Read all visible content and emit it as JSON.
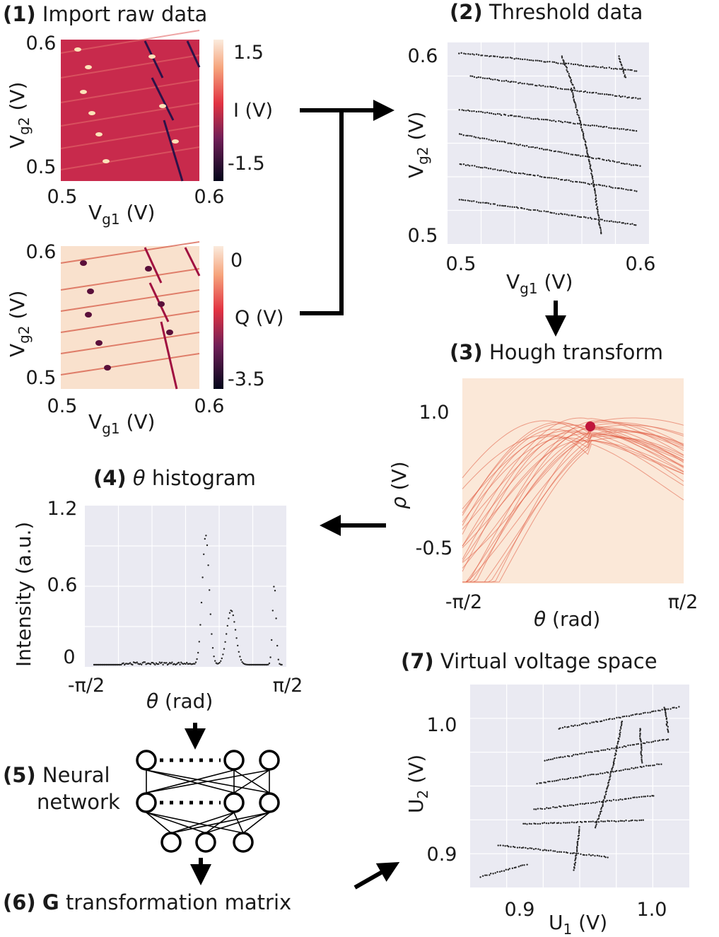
{
  "colors": {
    "panel_bg": "#eaeaf2",
    "grid": "#ffffff",
    "points": "#262626",
    "rocket_dark": "#2d1248",
    "rocket_mid": "#e33a45",
    "rocket_light": "#f9e2d0",
    "arrow": "#000000"
  },
  "steps": {
    "s1": {
      "num": "(1)",
      "label": "Import raw data"
    },
    "s2": {
      "num": "(2)",
      "label": "Threshold data"
    },
    "s3": {
      "num": "(3)",
      "label": "Hough transform"
    },
    "s4": {
      "num": "(4)",
      "label": "histogram",
      "symbol": "θ"
    },
    "s5": {
      "num": "(5)",
      "label_line1": "Neural",
      "label_line2": "network"
    },
    "s6": {
      "num": "(6)",
      "bold": "G",
      "label": "transformation matrix"
    },
    "s7": {
      "num": "(7)",
      "label": "Virtual voltage space"
    }
  },
  "panel_current": {
    "y_ticks": [
      "0.6",
      "0.5"
    ],
    "x_ticks": [
      "0.5",
      "0.6"
    ],
    "xlabel": {
      "base": "V",
      "sub": "g1",
      "unit": " (V)"
    },
    "ylabel": {
      "base": "V",
      "sub": "g2",
      "unit": " (V)"
    },
    "colorbar": {
      "label": "I (V)",
      "ticks": [
        "1.5",
        "-1.5"
      ]
    }
  },
  "panel_charge": {
    "y_ticks": [
      "0.6",
      "0.5"
    ],
    "x_ticks": [
      "0.5",
      "0.6"
    ],
    "xlabel": {
      "base": "V",
      "sub": "g1",
      "unit": " (V)"
    },
    "ylabel": {
      "base": "V",
      "sub": "g2",
      "unit": " (V)"
    },
    "colorbar": {
      "label": "Q (V)",
      "ticks": [
        "0",
        "-3.5"
      ]
    }
  },
  "panel_threshold": {
    "y_ticks": [
      "0.6",
      "0.5"
    ],
    "x_ticks": [
      "0.5",
      "0.6"
    ],
    "xlabel": {
      "base": "V",
      "sub": "g1",
      "unit": " (V)"
    },
    "ylabel": {
      "base": "V",
      "sub": "g2",
      "unit": " (V)"
    }
  },
  "panel_hough": {
    "y_ticks": [
      "1.0",
      "-0.5"
    ],
    "x_ticks": [
      "-π/2",
      "π/2"
    ],
    "xlabel": {
      "symbol": "θ",
      "unit": " (rad)"
    },
    "ylabel": {
      "symbol": "ρ",
      "unit": " (V)"
    }
  },
  "panel_histogram": {
    "y_ticks": [
      "1.2",
      "0.6",
      "0"
    ],
    "x_ticks": [
      "-π/2",
      "π/2"
    ],
    "xlabel": {
      "symbol": "θ",
      "unit": " (rad)"
    },
    "ylabel": "Intensity (a.u.)"
  },
  "panel_virtual": {
    "y_ticks": [
      "1.0",
      "0.9"
    ],
    "x_ticks": [
      "0.9",
      "1.0"
    ],
    "xlabel": {
      "base": "U",
      "sub": "1",
      "unit": " (V)"
    },
    "ylabel": {
      "base": "U",
      "sub": "2",
      "unit": " (V)"
    }
  }
}
